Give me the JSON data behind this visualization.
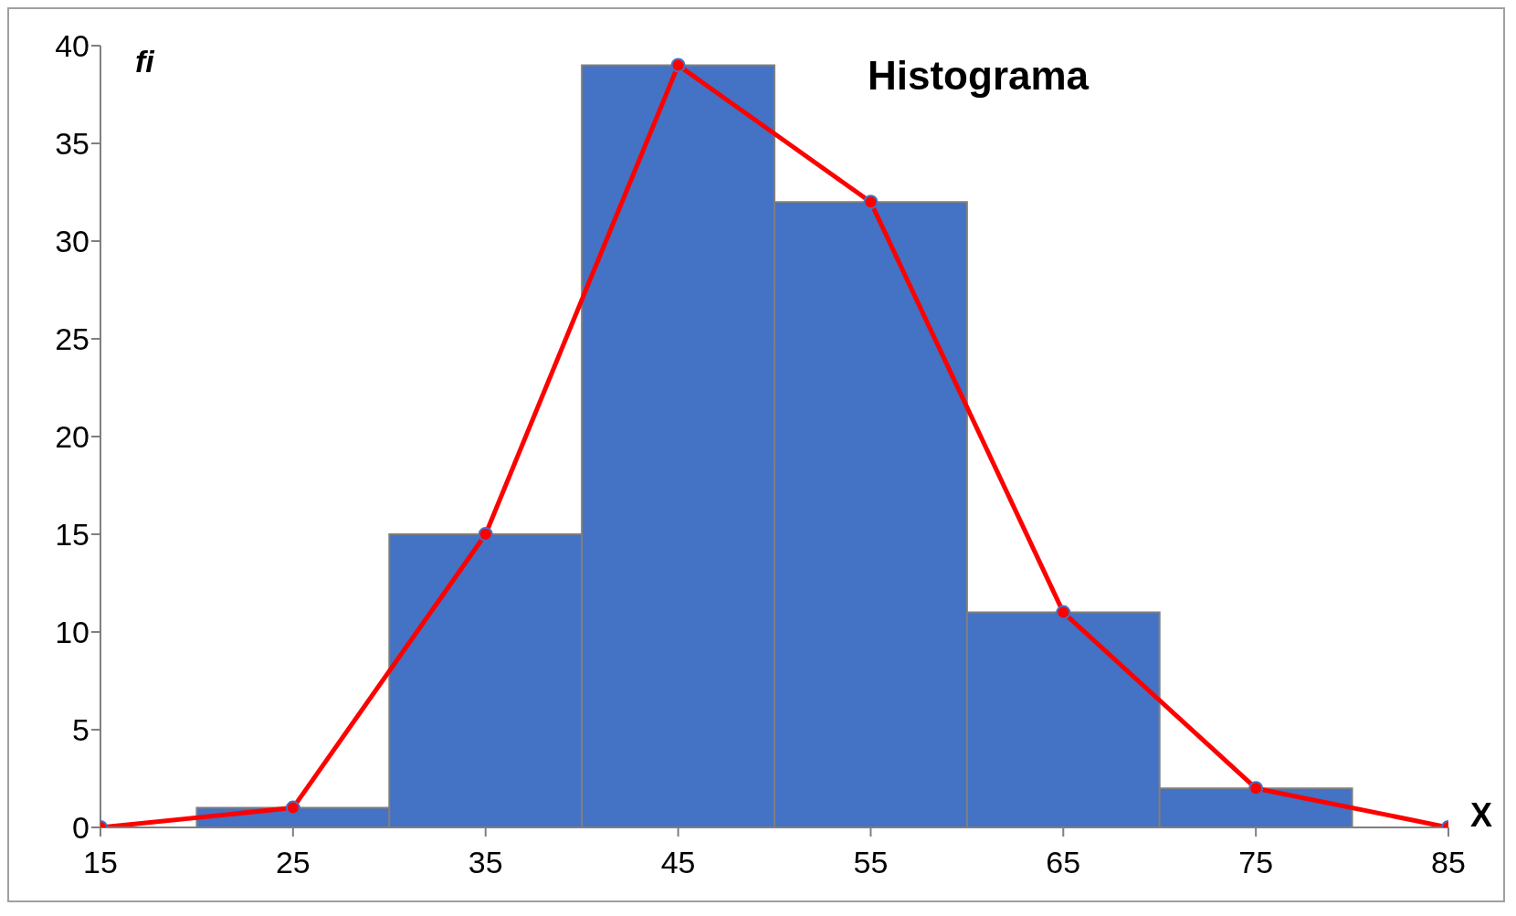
{
  "chart_data": {
    "type": "histogram",
    "title": "Histograma",
    "xlabel": "X",
    "ylabel": "fi",
    "bins": [
      20,
      30,
      40,
      50,
      60,
      70,
      80
    ],
    "values": [
      1,
      15,
      39,
      32,
      11,
      2
    ],
    "color": "#4472c4",
    "series": [
      {
        "type": "line",
        "x": [
          15,
          25,
          35,
          45,
          55,
          65,
          75,
          85
        ],
        "values": [
          0,
          1,
          15,
          39,
          32,
          11,
          2,
          0
        ],
        "color": "#ff0000",
        "marker": "circle"
      }
    ],
    "xlim": [
      15,
      85
    ],
    "xticks": [
      15,
      25,
      35,
      45,
      55,
      65,
      75,
      85
    ],
    "ylim": [
      0,
      40
    ],
    "yticks": [
      0,
      5,
      10,
      15,
      20,
      25,
      30,
      35,
      40
    ]
  }
}
